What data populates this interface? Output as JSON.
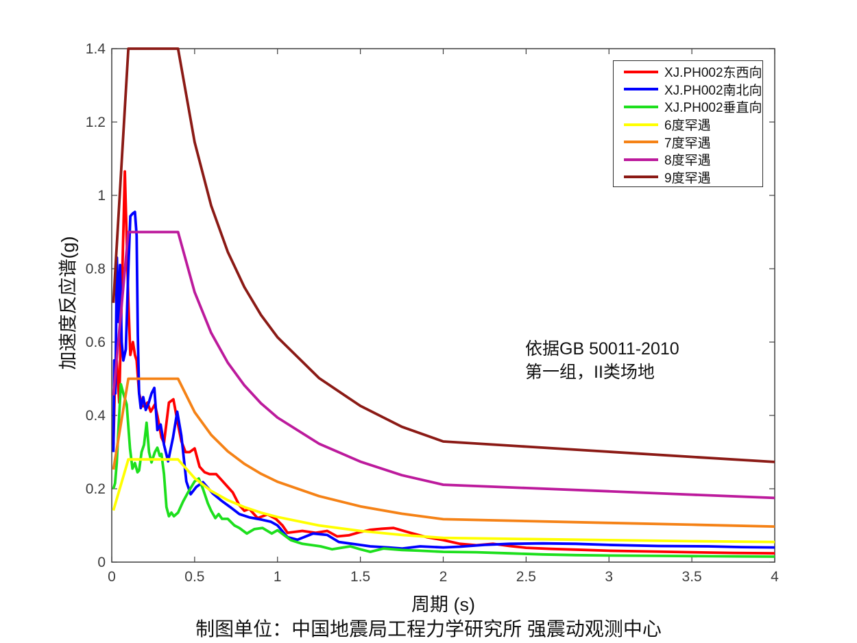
{
  "figure": {
    "background": "#ffffff",
    "axis_color": "#3c3c3c",
    "ylabel": "加速度反应谱(g)",
    "xlabel": "周期 (s)",
    "caption": "制图单位：中国地震局工程力学研究所 强震动观测中心",
    "annotation": {
      "line1": "依据GB 50011-2010",
      "line2": "第一组，II类场地"
    }
  },
  "chart_data": {
    "type": "line",
    "title": "",
    "xlabel": "周期 (s)",
    "ylabel": "加速度反应谱(g)",
    "xlim": [
      0,
      4
    ],
    "ylim": [
      0,
      1.4
    ],
    "xticks": [
      0,
      0.5,
      1,
      1.5,
      2,
      2.5,
      3,
      3.5,
      4
    ],
    "xtick_labels": [
      "0",
      "0.5",
      "1",
      "1.5",
      "2",
      "2.5",
      "3",
      "3.5",
      "4"
    ],
    "yticks": [
      0,
      0.2,
      0.4,
      0.6,
      0.8,
      1,
      1.2,
      1.4
    ],
    "ytick_labels": [
      "0",
      "0.2",
      "0.4",
      "0.6",
      "0.8",
      "1",
      "1.2",
      "1.4"
    ],
    "grid": false,
    "legend_position": "top-right",
    "series": [
      {
        "name": "XJ.PH002东西向",
        "color": "#ff0000",
        "points": [
          [
            0.01,
            0.32
          ],
          [
            0.02,
            0.5
          ],
          [
            0.03,
            0.55
          ],
          [
            0.045,
            0.435
          ],
          [
            0.06,
            0.72
          ],
          [
            0.079,
            1.065
          ],
          [
            0.09,
            0.88
          ],
          [
            0.1,
            0.71
          ],
          [
            0.112,
            0.565
          ],
          [
            0.128,
            0.6
          ],
          [
            0.14,
            0.565
          ],
          [
            0.15,
            0.55
          ],
          [
            0.165,
            0.46
          ],
          [
            0.185,
            0.425
          ],
          [
            0.2,
            0.425
          ],
          [
            0.215,
            0.435
          ],
          [
            0.235,
            0.41
          ],
          [
            0.26,
            0.43
          ],
          [
            0.275,
            0.4
          ],
          [
            0.3,
            0.34
          ],
          [
            0.315,
            0.325
          ],
          [
            0.345,
            0.435
          ],
          [
            0.372,
            0.444
          ],
          [
            0.4,
            0.375
          ],
          [
            0.42,
            0.33
          ],
          [
            0.445,
            0.3
          ],
          [
            0.47,
            0.3
          ],
          [
            0.5,
            0.31
          ],
          [
            0.53,
            0.26
          ],
          [
            0.56,
            0.245
          ],
          [
            0.59,
            0.24
          ],
          [
            0.63,
            0.24
          ],
          [
            0.66,
            0.225
          ],
          [
            0.7,
            0.205
          ],
          [
            0.73,
            0.19
          ],
          [
            0.77,
            0.155
          ],
          [
            0.8,
            0.14
          ],
          [
            0.83,
            0.145
          ],
          [
            0.88,
            0.12
          ],
          [
            0.94,
            0.13
          ],
          [
            0.99,
            0.118
          ],
          [
            1.03,
            0.1
          ],
          [
            1.06,
            0.08
          ],
          [
            1.15,
            0.085
          ],
          [
            1.23,
            0.08
          ],
          [
            1.3,
            0.085
          ],
          [
            1.36,
            0.07
          ],
          [
            1.43,
            0.073
          ],
          [
            1.5,
            0.082
          ],
          [
            1.56,
            0.088
          ],
          [
            1.63,
            0.091
          ],
          [
            1.7,
            0.093
          ],
          [
            1.8,
            0.08
          ],
          [
            1.9,
            0.068
          ],
          [
            2.0,
            0.06
          ],
          [
            2.1,
            0.05
          ],
          [
            2.2,
            0.046
          ],
          [
            2.3,
            0.05
          ],
          [
            2.4,
            0.044
          ],
          [
            2.5,
            0.039
          ],
          [
            2.65,
            0.036
          ],
          [
            2.8,
            0.034
          ],
          [
            3.0,
            0.031
          ],
          [
            3.25,
            0.029
          ],
          [
            3.5,
            0.027
          ],
          [
            3.75,
            0.025
          ],
          [
            4.0,
            0.024
          ]
        ]
      },
      {
        "name": "XJ.PH002南北向",
        "color": "#0000ff",
        "points": [
          [
            0.01,
            0.3
          ],
          [
            0.015,
            0.55
          ],
          [
            0.022,
            0.46
          ],
          [
            0.031,
            0.83
          ],
          [
            0.04,
            0.655
          ],
          [
            0.05,
            0.81
          ],
          [
            0.06,
            0.6
          ],
          [
            0.07,
            0.55
          ],
          [
            0.085,
            0.58
          ],
          [
            0.1,
            0.8
          ],
          [
            0.112,
            0.943
          ],
          [
            0.125,
            0.95
          ],
          [
            0.14,
            0.955
          ],
          [
            0.15,
            0.89
          ],
          [
            0.157,
            0.62
          ],
          [
            0.165,
            0.46
          ],
          [
            0.175,
            0.42
          ],
          [
            0.19,
            0.45
          ],
          [
            0.205,
            0.415
          ],
          [
            0.22,
            0.43
          ],
          [
            0.24,
            0.46
          ],
          [
            0.257,
            0.475
          ],
          [
            0.275,
            0.36
          ],
          [
            0.295,
            0.375
          ],
          [
            0.315,
            0.32
          ],
          [
            0.34,
            0.275
          ],
          [
            0.37,
            0.34
          ],
          [
            0.395,
            0.41
          ],
          [
            0.42,
            0.345
          ],
          [
            0.45,
            0.22
          ],
          [
            0.476,
            0.185
          ],
          [
            0.51,
            0.205
          ],
          [
            0.55,
            0.218
          ],
          [
            0.61,
            0.187
          ],
          [
            0.66,
            0.168
          ],
          [
            0.715,
            0.15
          ],
          [
            0.77,
            0.131
          ],
          [
            0.83,
            0.122
          ],
          [
            0.9,
            0.116
          ],
          [
            0.96,
            0.11
          ],
          [
            1.0,
            0.1
          ],
          [
            1.06,
            0.068
          ],
          [
            1.12,
            0.061
          ],
          [
            1.215,
            0.078
          ],
          [
            1.3,
            0.074
          ],
          [
            1.37,
            0.055
          ],
          [
            1.45,
            0.05
          ],
          [
            1.56,
            0.043
          ],
          [
            1.67,
            0.04
          ],
          [
            1.75,
            0.037
          ],
          [
            1.86,
            0.043
          ],
          [
            2.0,
            0.04
          ],
          [
            2.1,
            0.042
          ],
          [
            2.25,
            0.047
          ],
          [
            2.4,
            0.05
          ],
          [
            2.6,
            0.051
          ],
          [
            2.8,
            0.05
          ],
          [
            3.0,
            0.047
          ],
          [
            3.3,
            0.044
          ],
          [
            3.6,
            0.043
          ],
          [
            3.8,
            0.041
          ],
          [
            4.0,
            0.04
          ]
        ]
      },
      {
        "name": "XJ.PH002垂直向",
        "color": "#1ddf1d",
        "points": [
          [
            0.01,
            0.2
          ],
          [
            0.02,
            0.215
          ],
          [
            0.03,
            0.27
          ],
          [
            0.04,
            0.36
          ],
          [
            0.055,
            0.485
          ],
          [
            0.07,
            0.46
          ],
          [
            0.09,
            0.43
          ],
          [
            0.11,
            0.31
          ],
          [
            0.125,
            0.255
          ],
          [
            0.14,
            0.27
          ],
          [
            0.155,
            0.245
          ],
          [
            0.165,
            0.25
          ],
          [
            0.18,
            0.3
          ],
          [
            0.195,
            0.32
          ],
          [
            0.21,
            0.38
          ],
          [
            0.225,
            0.3
          ],
          [
            0.24,
            0.272
          ],
          [
            0.26,
            0.3
          ],
          [
            0.275,
            0.312
          ],
          [
            0.29,
            0.29
          ],
          [
            0.3,
            0.295
          ],
          [
            0.315,
            0.24
          ],
          [
            0.33,
            0.15
          ],
          [
            0.345,
            0.125
          ],
          [
            0.36,
            0.135
          ],
          [
            0.375,
            0.125
          ],
          [
            0.4,
            0.135
          ],
          [
            0.43,
            0.165
          ],
          [
            0.46,
            0.19
          ],
          [
            0.5,
            0.22
          ],
          [
            0.525,
            0.228
          ],
          [
            0.55,
            0.2
          ],
          [
            0.58,
            0.16
          ],
          [
            0.6,
            0.14
          ],
          [
            0.625,
            0.12
          ],
          [
            0.645,
            0.131
          ],
          [
            0.665,
            0.118
          ],
          [
            0.7,
            0.118
          ],
          [
            0.74,
            0.1
          ],
          [
            0.77,
            0.093
          ],
          [
            0.815,
            0.078
          ],
          [
            0.86,
            0.09
          ],
          [
            0.91,
            0.093
          ],
          [
            0.965,
            0.078
          ],
          [
            1.0,
            0.087
          ],
          [
            1.08,
            0.06
          ],
          [
            1.15,
            0.05
          ],
          [
            1.26,
            0.043
          ],
          [
            1.33,
            0.035
          ],
          [
            1.44,
            0.043
          ],
          [
            1.5,
            0.035
          ],
          [
            1.56,
            0.028
          ],
          [
            1.64,
            0.037
          ],
          [
            1.75,
            0.033
          ],
          [
            1.86,
            0.031
          ],
          [
            2.0,
            0.028
          ],
          [
            2.2,
            0.027
          ],
          [
            2.4,
            0.024
          ],
          [
            2.6,
            0.021
          ],
          [
            2.8,
            0.019
          ],
          [
            3.0,
            0.018
          ],
          [
            3.3,
            0.017
          ],
          [
            3.6,
            0.016
          ],
          [
            3.8,
            0.0155
          ],
          [
            4.0,
            0.015
          ]
        ]
      },
      {
        "name": "6度罕遇",
        "color": "#ffff00",
        "points": [
          [
            0.01,
            0.141
          ],
          [
            0.1,
            0.28
          ],
          [
            0.4,
            0.28
          ],
          [
            0.5,
            0.229
          ],
          [
            0.6,
            0.194
          ],
          [
            0.7,
            0.169
          ],
          [
            0.8,
            0.15
          ],
          [
            0.9,
            0.135
          ],
          [
            1.0,
            0.123
          ],
          [
            1.25,
            0.1
          ],
          [
            1.5,
            0.085
          ],
          [
            1.75,
            0.074
          ],
          [
            2.0,
            0.066
          ],
          [
            2.5,
            0.063
          ],
          [
            3.0,
            0.06
          ],
          [
            3.5,
            0.057
          ],
          [
            4.0,
            0.055
          ]
        ]
      },
      {
        "name": "7度罕遇",
        "color": "#f58216",
        "points": [
          [
            0.01,
            0.2525
          ],
          [
            0.1,
            0.5
          ],
          [
            0.4,
            0.5
          ],
          [
            0.5,
            0.409
          ],
          [
            0.6,
            0.347
          ],
          [
            0.7,
            0.302
          ],
          [
            0.8,
            0.268
          ],
          [
            0.9,
            0.241
          ],
          [
            1.0,
            0.219
          ],
          [
            1.25,
            0.18
          ],
          [
            1.5,
            0.152
          ],
          [
            1.75,
            0.132
          ],
          [
            2.0,
            0.117
          ],
          [
            2.5,
            0.112
          ],
          [
            3.0,
            0.107
          ],
          [
            3.5,
            0.102
          ],
          [
            4.0,
            0.097
          ]
        ]
      },
      {
        "name": "8度罕遇",
        "color": "#bc1a9c",
        "points": [
          [
            0.01,
            0.4545
          ],
          [
            0.1,
            0.9
          ],
          [
            0.4,
            0.9
          ],
          [
            0.5,
            0.736
          ],
          [
            0.6,
            0.625
          ],
          [
            0.7,
            0.544
          ],
          [
            0.8,
            0.482
          ],
          [
            0.9,
            0.433
          ],
          [
            1.0,
            0.394
          ],
          [
            1.25,
            0.323
          ],
          [
            1.5,
            0.274
          ],
          [
            1.75,
            0.237
          ],
          [
            2.0,
            0.211
          ],
          [
            2.5,
            0.202
          ],
          [
            3.0,
            0.193
          ],
          [
            3.5,
            0.184
          ],
          [
            4.0,
            0.175
          ]
        ]
      },
      {
        "name": "9度罕遇",
        "color": "#8b1a15",
        "points": [
          [
            0.01,
            0.707
          ],
          [
            0.1,
            1.4
          ],
          [
            0.4,
            1.4
          ],
          [
            0.5,
            1.145
          ],
          [
            0.6,
            0.972
          ],
          [
            0.7,
            0.846
          ],
          [
            0.8,
            0.75
          ],
          [
            0.9,
            0.674
          ],
          [
            1.0,
            0.613
          ],
          [
            1.25,
            0.502
          ],
          [
            1.5,
            0.426
          ],
          [
            1.75,
            0.369
          ],
          [
            2.0,
            0.329
          ],
          [
            2.5,
            0.315
          ],
          [
            3.0,
            0.301
          ],
          [
            3.5,
            0.287
          ],
          [
            4.0,
            0.273
          ]
        ]
      }
    ]
  }
}
